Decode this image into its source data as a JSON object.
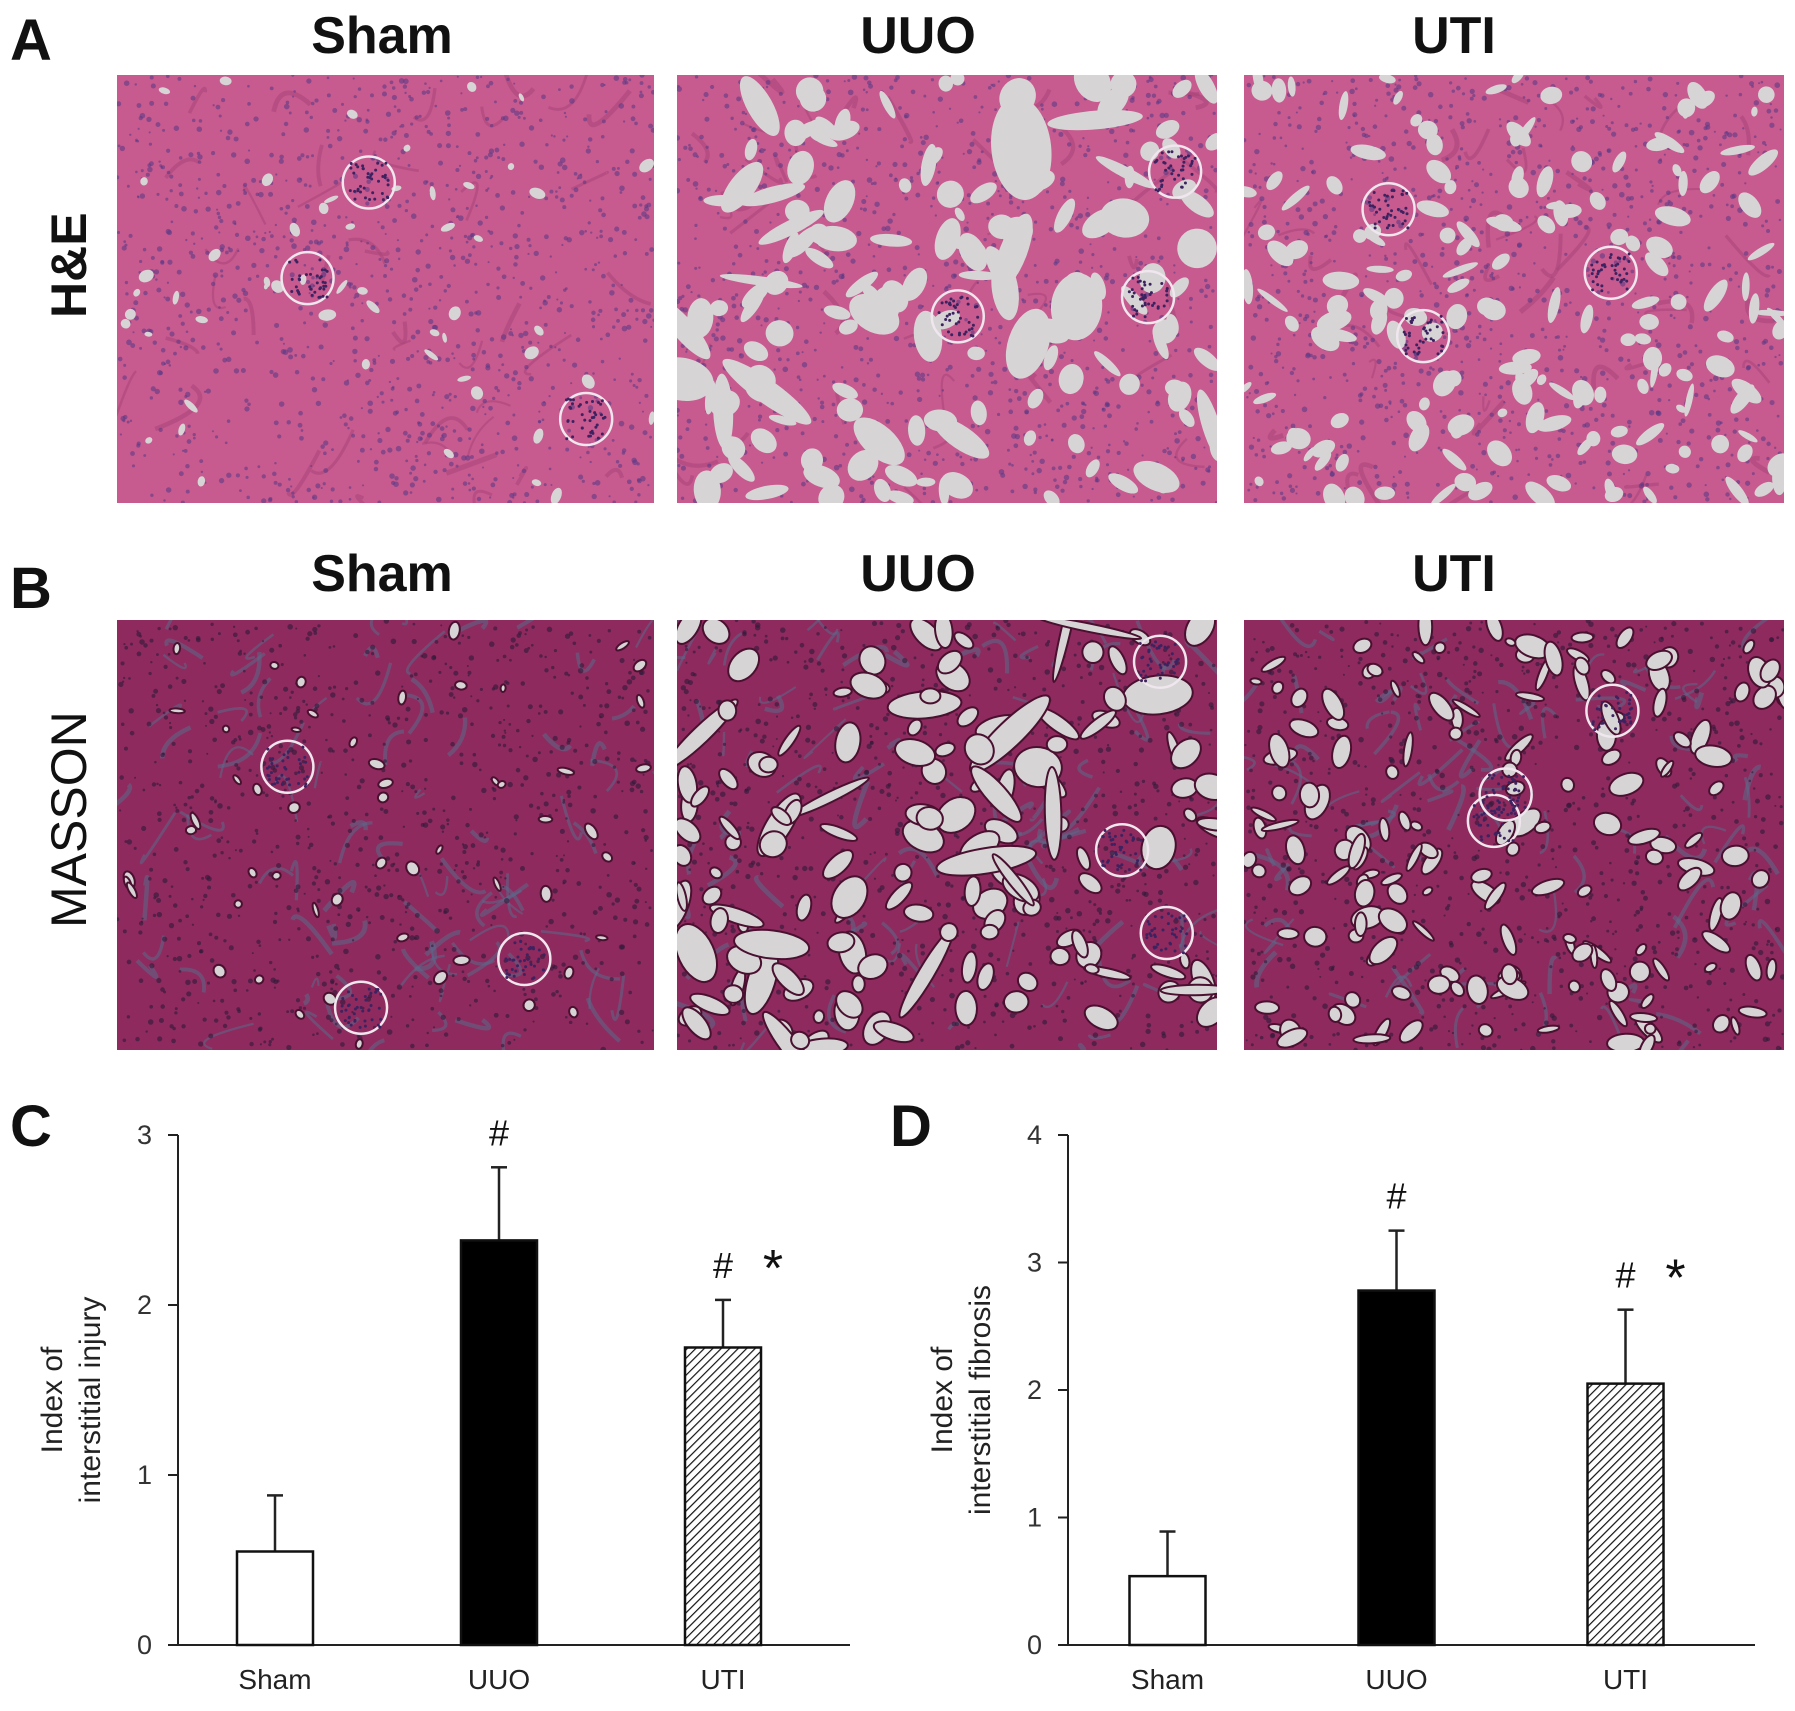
{
  "panels": {
    "a": {
      "letter": "A",
      "row_label": "H&E",
      "columns": [
        "Sham",
        "UUO",
        "UTI"
      ]
    },
    "b": {
      "letter": "B",
      "row_label": "MASSON",
      "columns": [
        "Sham",
        "UUO",
        "UTI"
      ]
    },
    "c": {
      "letter": "C"
    },
    "d": {
      "letter": "D"
    }
  },
  "colors": {
    "he_tissue": "#c75a8f",
    "he_nuclei": "#5b3a85",
    "masson_tissue": "#8e2a5e",
    "masson_collagen": "#5a6a8a",
    "lumen": "#d6d4d4",
    "bar_sham": "#ffffff",
    "bar_uuo": "#000000",
    "bar_uti": "hatched"
  },
  "chart_data": [
    {
      "type": "bar",
      "categories": [
        "Sham",
        "UUO",
        "UTI"
      ],
      "values": [
        0.55,
        2.38,
        1.75
      ],
      "errors": [
        0.33,
        0.43,
        0.28
      ],
      "annotations": [
        "",
        "#",
        "# *"
      ],
      "ylabel_line1": "Index of",
      "ylabel_line2": "interstitial injury",
      "ylim": [
        0,
        3
      ],
      "yticks": [
        "0",
        "1",
        "2",
        "3"
      ],
      "grid": false
    },
    {
      "type": "bar",
      "categories": [
        "Sham",
        "UUO",
        "UTI"
      ],
      "values": [
        0.54,
        2.78,
        2.05
      ],
      "errors": [
        0.35,
        0.47,
        0.58
      ],
      "annotations": [
        "",
        "#",
        "# *"
      ],
      "ylabel_line1": "Index of",
      "ylabel_line2": "interstitial fibrosis",
      "ylim": [
        0,
        4
      ],
      "yticks": [
        "0",
        "1",
        "2",
        "3",
        "4"
      ],
      "grid": false
    }
  ]
}
